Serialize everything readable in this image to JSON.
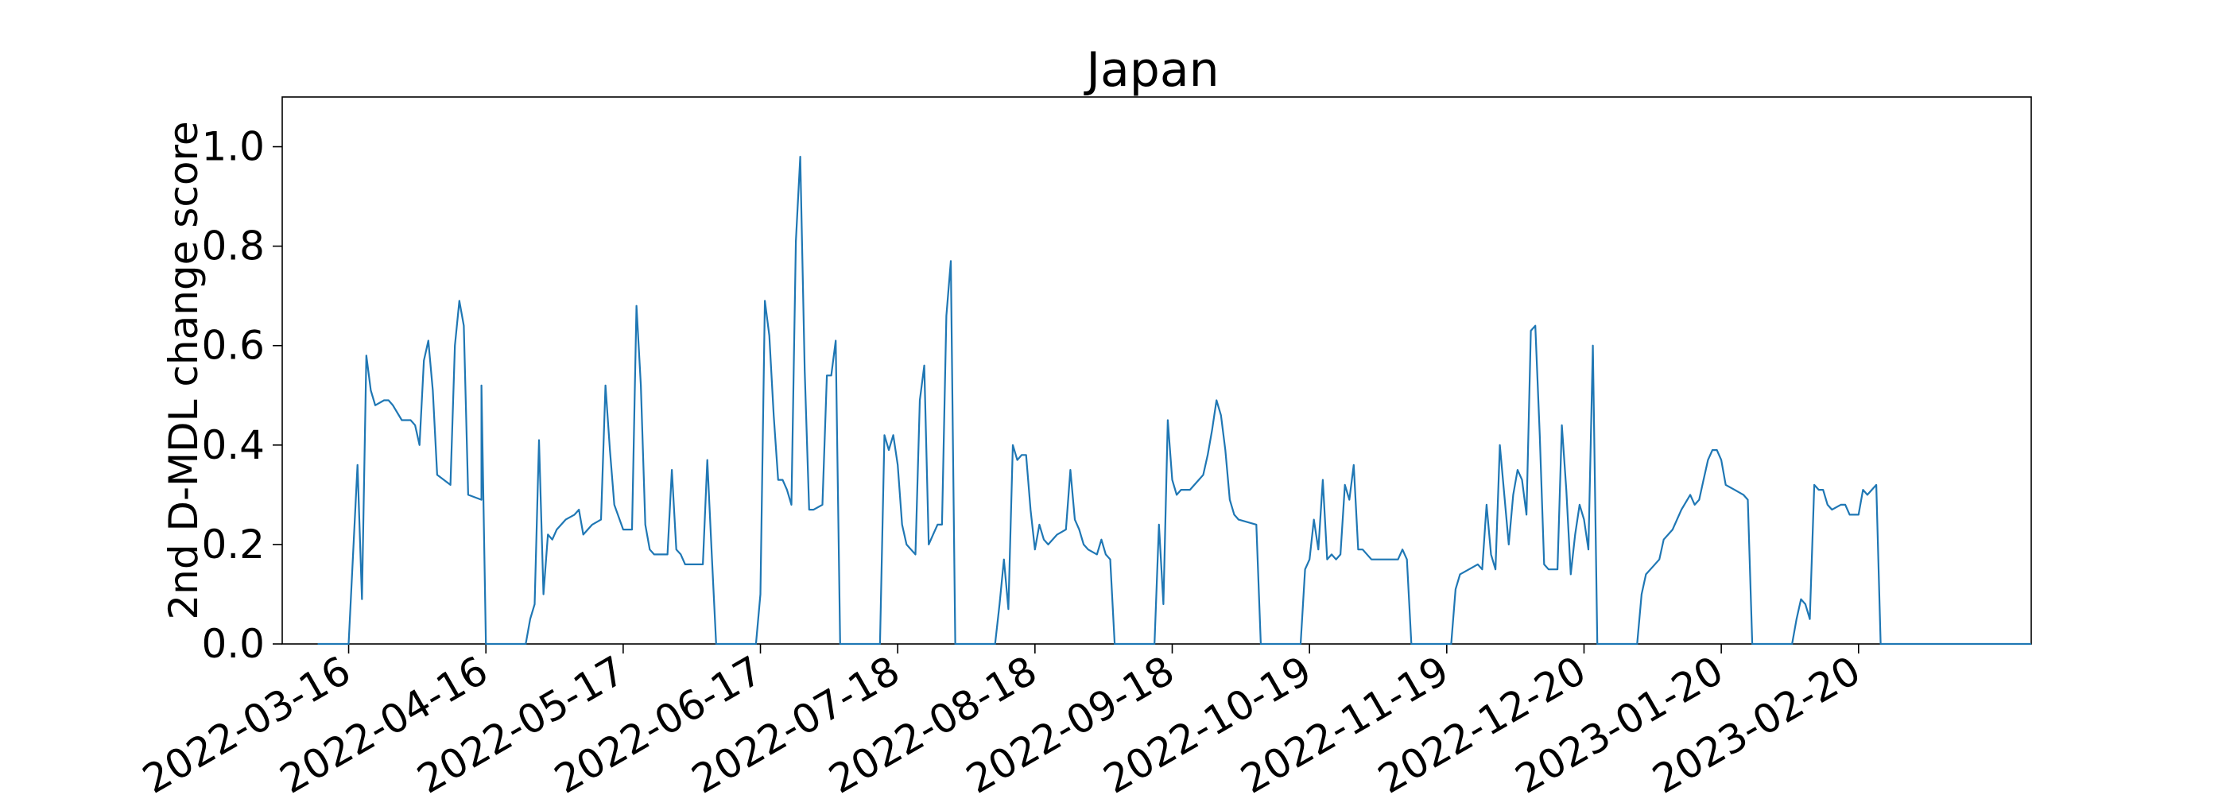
{
  "chart_data": {
    "type": "line",
    "title": "Japan",
    "xlabel": "",
    "ylabel": "2nd D-MDL change score",
    "x_axis_type": "date",
    "xlim": [
      "2022-03-01",
      "2023-03-31"
    ],
    "ylim": [
      0,
      1.1
    ],
    "x_ticks": [
      "2022-03-16",
      "2022-04-16",
      "2022-05-17",
      "2022-06-17",
      "2022-07-18",
      "2022-08-18",
      "2022-09-18",
      "2022-10-19",
      "2022-11-19",
      "2022-12-20",
      "2023-01-20",
      "2023-02-20"
    ],
    "y_ticks": [
      0.0,
      0.2,
      0.4,
      0.6,
      0.8,
      1.0
    ],
    "y_tick_labels": [
      "0.0",
      "0.2",
      "0.4",
      "0.6",
      "0.8",
      "1.0"
    ],
    "grid": false,
    "line_color": "#1f77b4",
    "series": [
      {
        "points": [
          [
            "2022-03-09",
            0
          ],
          [
            "2022-03-16",
            0
          ],
          [
            "2022-03-18",
            0.36
          ],
          [
            "2022-03-19",
            0.09
          ],
          [
            "2022-03-20",
            0.58
          ],
          [
            "2022-03-21",
            0.51
          ],
          [
            "2022-03-22",
            0.48
          ],
          [
            "2022-03-24",
            0.49
          ],
          [
            "2022-03-25",
            0.49
          ],
          [
            "2022-03-26",
            0.48
          ],
          [
            "2022-03-28",
            0.45
          ],
          [
            "2022-03-30",
            0.45
          ],
          [
            "2022-03-31",
            0.44
          ],
          [
            "2022-04-01",
            0.4
          ],
          [
            "2022-04-02",
            0.57
          ],
          [
            "2022-04-03",
            0.61
          ],
          [
            "2022-04-04",
            0.51
          ],
          [
            "2022-04-05",
            0.34
          ],
          [
            "2022-04-08",
            0.32
          ],
          [
            "2022-04-09",
            0.6
          ],
          [
            "2022-04-10",
            0.69
          ],
          [
            "2022-04-11",
            0.64
          ],
          [
            "2022-04-12",
            0.3
          ],
          [
            "2022-04-15",
            0.29
          ],
          [
            "2022-04-15",
            0.52
          ],
          [
            "2022-04-16",
            0
          ],
          [
            "2022-04-25",
            0
          ],
          [
            "2022-04-26",
            0.05
          ],
          [
            "2022-04-27",
            0.08
          ],
          [
            "2022-04-28",
            0.41
          ],
          [
            "2022-04-29",
            0.1
          ],
          [
            "2022-04-30",
            0.22
          ],
          [
            "2022-05-01",
            0.21
          ],
          [
            "2022-05-02",
            0.23
          ],
          [
            "2022-05-04",
            0.25
          ],
          [
            "2022-05-06",
            0.26
          ],
          [
            "2022-05-07",
            0.27
          ],
          [
            "2022-05-08",
            0.22
          ],
          [
            "2022-05-10",
            0.24
          ],
          [
            "2022-05-12",
            0.25
          ],
          [
            "2022-05-13",
            0.52
          ],
          [
            "2022-05-14",
            0.39
          ],
          [
            "2022-05-15",
            0.28
          ],
          [
            "2022-05-17",
            0.23
          ],
          [
            "2022-05-19",
            0.23
          ],
          [
            "2022-05-20",
            0.68
          ],
          [
            "2022-05-21",
            0.52
          ],
          [
            "2022-05-22",
            0.24
          ],
          [
            "2022-05-23",
            0.19
          ],
          [
            "2022-05-24",
            0.18
          ],
          [
            "2022-05-27",
            0.18
          ],
          [
            "2022-05-28",
            0.35
          ],
          [
            "2022-05-29",
            0.19
          ],
          [
            "2022-05-30",
            0.18
          ],
          [
            "2022-05-31",
            0.16
          ],
          [
            "2022-06-04",
            0.16
          ],
          [
            "2022-06-05",
            0.37
          ],
          [
            "2022-06-06",
            0.18
          ],
          [
            "2022-06-07",
            0
          ],
          [
            "2022-06-16",
            0
          ],
          [
            "2022-06-17",
            0.1
          ],
          [
            "2022-06-18",
            0.69
          ],
          [
            "2022-06-19",
            0.62
          ],
          [
            "2022-06-20",
            0.46
          ],
          [
            "2022-06-21",
            0.33
          ],
          [
            "2022-06-22",
            0.33
          ],
          [
            "2022-06-23",
            0.31
          ],
          [
            "2022-06-24",
            0.28
          ],
          [
            "2022-06-25",
            0.81
          ],
          [
            "2022-06-26",
            0.98
          ],
          [
            "2022-06-27",
            0.55
          ],
          [
            "2022-06-28",
            0.27
          ],
          [
            "2022-06-29",
            0.27
          ],
          [
            "2022-07-01",
            0.28
          ],
          [
            "2022-07-02",
            0.54
          ],
          [
            "2022-07-03",
            0.54
          ],
          [
            "2022-07-04",
            0.61
          ],
          [
            "2022-07-05",
            0
          ],
          [
            "2022-07-14",
            0
          ],
          [
            "2022-07-15",
            0.42
          ],
          [
            "2022-07-16",
            0.39
          ],
          [
            "2022-07-17",
            0.42
          ],
          [
            "2022-07-18",
            0.36
          ],
          [
            "2022-07-19",
            0.24
          ],
          [
            "2022-07-20",
            0.2
          ],
          [
            "2022-07-21",
            0.19
          ],
          [
            "2022-07-22",
            0.18
          ],
          [
            "2022-07-23",
            0.49
          ],
          [
            "2022-07-24",
            0.56
          ],
          [
            "2022-07-25",
            0.2
          ],
          [
            "2022-07-26",
            0.22
          ],
          [
            "2022-07-27",
            0.24
          ],
          [
            "2022-07-28",
            0.24
          ],
          [
            "2022-07-29",
            0.66
          ],
          [
            "2022-07-30",
            0.77
          ],
          [
            "2022-07-31",
            0
          ],
          [
            "2022-08-09",
            0
          ],
          [
            "2022-08-10",
            0.08
          ],
          [
            "2022-08-11",
            0.17
          ],
          [
            "2022-08-12",
            0.07
          ],
          [
            "2022-08-13",
            0.4
          ],
          [
            "2022-08-14",
            0.37
          ],
          [
            "2022-08-15",
            0.38
          ],
          [
            "2022-08-16",
            0.38
          ],
          [
            "2022-08-17",
            0.27
          ],
          [
            "2022-08-18",
            0.19
          ],
          [
            "2022-08-19",
            0.24
          ],
          [
            "2022-08-20",
            0.21
          ],
          [
            "2022-08-21",
            0.2
          ],
          [
            "2022-08-23",
            0.22
          ],
          [
            "2022-08-25",
            0.23
          ],
          [
            "2022-08-26",
            0.35
          ],
          [
            "2022-08-27",
            0.25
          ],
          [
            "2022-08-28",
            0.23
          ],
          [
            "2022-08-29",
            0.2
          ],
          [
            "2022-08-30",
            0.19
          ],
          [
            "2022-09-01",
            0.18
          ],
          [
            "2022-09-02",
            0.21
          ],
          [
            "2022-09-03",
            0.18
          ],
          [
            "2022-09-04",
            0.17
          ],
          [
            "2022-09-05",
            0
          ],
          [
            "2022-09-14",
            0
          ],
          [
            "2022-09-15",
            0.24
          ],
          [
            "2022-09-16",
            0.08
          ],
          [
            "2022-09-17",
            0.45
          ],
          [
            "2022-09-18",
            0.33
          ],
          [
            "2022-09-19",
            0.3
          ],
          [
            "2022-09-20",
            0.31
          ],
          [
            "2022-09-22",
            0.31
          ],
          [
            "2022-09-24",
            0.33
          ],
          [
            "2022-09-25",
            0.34
          ],
          [
            "2022-09-26",
            0.38
          ],
          [
            "2022-09-27",
            0.43
          ],
          [
            "2022-09-28",
            0.49
          ],
          [
            "2022-09-29",
            0.46
          ],
          [
            "2022-09-30",
            0.39
          ],
          [
            "2022-10-01",
            0.29
          ],
          [
            "2022-10-02",
            0.26
          ],
          [
            "2022-10-03",
            0.25
          ],
          [
            "2022-10-07",
            0.24
          ],
          [
            "2022-10-08",
            0
          ],
          [
            "2022-10-17",
            0
          ],
          [
            "2022-10-18",
            0.15
          ],
          [
            "2022-10-19",
            0.17
          ],
          [
            "2022-10-20",
            0.25
          ],
          [
            "2022-10-21",
            0.19
          ],
          [
            "2022-10-22",
            0.33
          ],
          [
            "2022-10-23",
            0.17
          ],
          [
            "2022-10-24",
            0.18
          ],
          [
            "2022-10-25",
            0.17
          ],
          [
            "2022-10-26",
            0.18
          ],
          [
            "2022-10-27",
            0.32
          ],
          [
            "2022-10-28",
            0.29
          ],
          [
            "2022-10-29",
            0.36
          ],
          [
            "2022-10-30",
            0.19
          ],
          [
            "2022-10-31",
            0.19
          ],
          [
            "2022-11-02",
            0.17
          ],
          [
            "2022-11-04",
            0.17
          ],
          [
            "2022-11-08",
            0.17
          ],
          [
            "2022-11-09",
            0.19
          ],
          [
            "2022-11-10",
            0.17
          ],
          [
            "2022-11-11",
            0
          ],
          [
            "2022-11-20",
            0
          ],
          [
            "2022-11-21",
            0.11
          ],
          [
            "2022-11-22",
            0.14
          ],
          [
            "2022-11-24",
            0.15
          ],
          [
            "2022-11-26",
            0.16
          ],
          [
            "2022-11-27",
            0.15
          ],
          [
            "2022-11-28",
            0.28
          ],
          [
            "2022-11-29",
            0.18
          ],
          [
            "2022-11-30",
            0.15
          ],
          [
            "2022-12-01",
            0.4
          ],
          [
            "2022-12-02",
            0.3
          ],
          [
            "2022-12-03",
            0.2
          ],
          [
            "2022-12-04",
            0.3
          ],
          [
            "2022-12-05",
            0.35
          ],
          [
            "2022-12-06",
            0.33
          ],
          [
            "2022-12-07",
            0.26
          ],
          [
            "2022-12-08",
            0.63
          ],
          [
            "2022-12-09",
            0.64
          ],
          [
            "2022-12-10",
            0.42
          ],
          [
            "2022-12-11",
            0.16
          ],
          [
            "2022-12-12",
            0.15
          ],
          [
            "2022-12-14",
            0.15
          ],
          [
            "2022-12-15",
            0.44
          ],
          [
            "2022-12-16",
            0.31
          ],
          [
            "2022-12-17",
            0.14
          ],
          [
            "2022-12-18",
            0.22
          ],
          [
            "2022-12-19",
            0.28
          ],
          [
            "2022-12-20",
            0.25
          ],
          [
            "2022-12-21",
            0.19
          ],
          [
            "2022-12-22",
            0.6
          ],
          [
            "2022-12-23",
            0
          ],
          [
            "2023-01-01",
            0
          ],
          [
            "2023-01-02",
            0.1
          ],
          [
            "2023-01-03",
            0.14
          ],
          [
            "2023-01-04",
            0.15
          ],
          [
            "2023-01-06",
            0.17
          ],
          [
            "2023-01-07",
            0.21
          ],
          [
            "2023-01-09",
            0.23
          ],
          [
            "2023-01-11",
            0.27
          ],
          [
            "2023-01-13",
            0.3
          ],
          [
            "2023-01-14",
            0.28
          ],
          [
            "2023-01-15",
            0.29
          ],
          [
            "2023-01-16",
            0.33
          ],
          [
            "2023-01-17",
            0.37
          ],
          [
            "2023-01-18",
            0.39
          ],
          [
            "2023-01-19",
            0.39
          ],
          [
            "2023-01-20",
            0.37
          ],
          [
            "2023-01-21",
            0.32
          ],
          [
            "2023-01-23",
            0.31
          ],
          [
            "2023-01-25",
            0.3
          ],
          [
            "2023-01-26",
            0.29
          ],
          [
            "2023-01-27",
            0
          ],
          [
            "2023-02-05",
            0
          ],
          [
            "2023-02-06",
            0.05
          ],
          [
            "2023-02-07",
            0.09
          ],
          [
            "2023-02-08",
            0.08
          ],
          [
            "2023-02-09",
            0.05
          ],
          [
            "2023-02-10",
            0.32
          ],
          [
            "2023-02-11",
            0.31
          ],
          [
            "2023-02-12",
            0.31
          ],
          [
            "2023-02-13",
            0.28
          ],
          [
            "2023-02-14",
            0.27
          ],
          [
            "2023-02-16",
            0.28
          ],
          [
            "2023-02-17",
            0.28
          ],
          [
            "2023-02-18",
            0.26
          ],
          [
            "2023-02-20",
            0.26
          ],
          [
            "2023-02-21",
            0.31
          ],
          [
            "2023-02-22",
            0.3
          ],
          [
            "2023-02-24",
            0.32
          ],
          [
            "2023-02-25",
            0
          ],
          [
            "2023-03-31",
            0
          ]
        ]
      }
    ]
  }
}
